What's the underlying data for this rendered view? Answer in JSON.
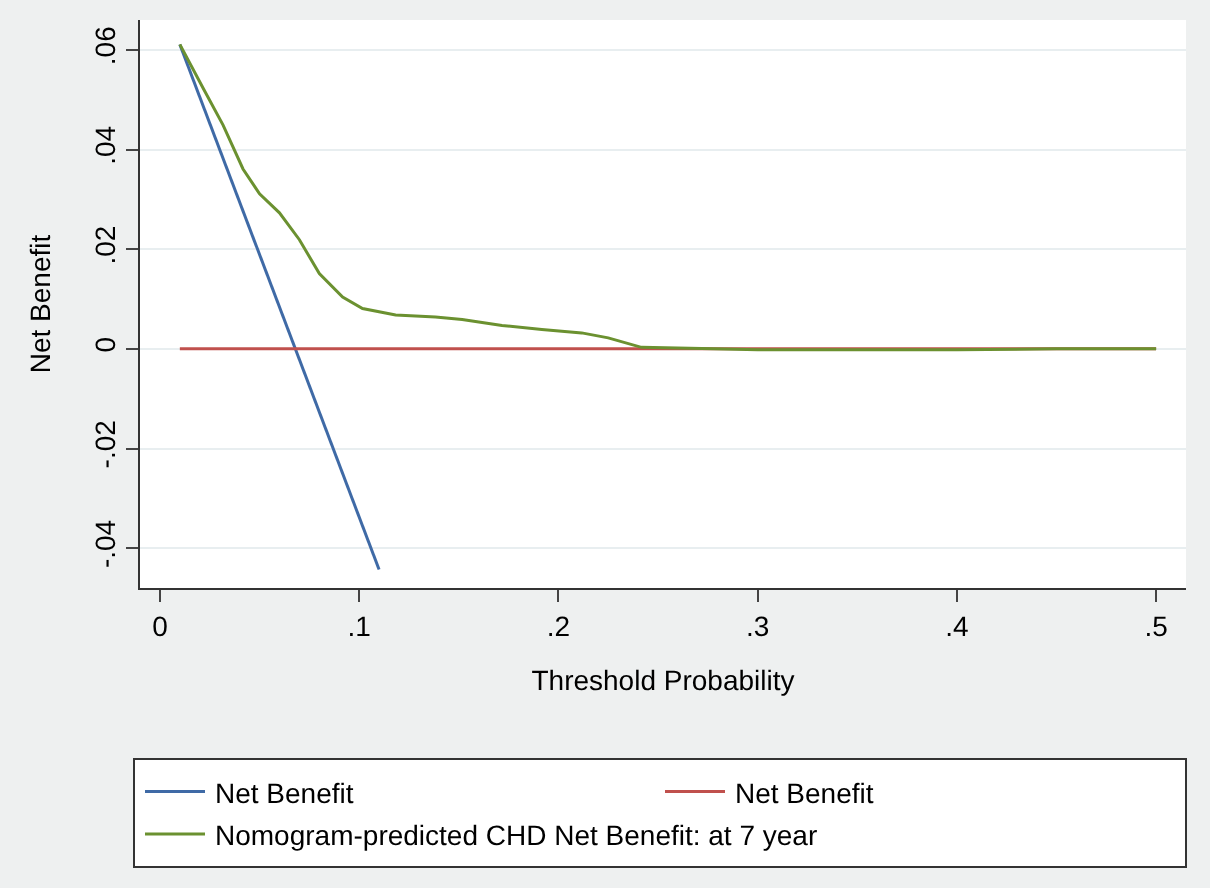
{
  "chart_data": {
    "type": "line",
    "xlabel": "Threshold Probability",
    "ylabel": "Net Benefit",
    "xlim": [
      -0.01,
      0.515
    ],
    "ylim": [
      -0.048,
      0.066
    ],
    "xticks": [
      0,
      {
        "value": 0.1,
        "label": ".1"
      },
      {
        "value": 0.2,
        "label": ".2"
      },
      {
        "value": 0.3,
        "label": ".3"
      },
      {
        "value": 0.4,
        "label": ".4"
      },
      {
        "value": 0.5,
        "label": ".5"
      }
    ],
    "yticks": [
      {
        "value": -0.04,
        "label": "-.04"
      },
      {
        "value": -0.02,
        "label": "-.02"
      },
      0,
      {
        "value": 0.02,
        "label": ".02"
      },
      {
        "value": 0.04,
        "label": ".04"
      },
      {
        "value": 0.06,
        "label": ".06"
      }
    ],
    "grid": "y",
    "legend": "bottom",
    "marker": "none",
    "line_style": "solid",
    "series": [
      {
        "name": "Net Benefit",
        "color": "#3f6aa6",
        "x": [
          0.01,
          0.11
        ],
        "values": [
          0.0611,
          -0.0443
        ]
      },
      {
        "name": "Net Benefit",
        "color": "#c0504d",
        "x": [
          0.01,
          0.5
        ],
        "values": [
          0,
          0
        ]
      },
      {
        "name": "Nomogram-predicted CHD Net Benefit: at 7 year",
        "color": "#6b9130",
        "x": [
          0.01,
          0.0217,
          0.0317,
          0.0417,
          0.05,
          0.06,
          0.07,
          0.08,
          0.0917,
          0.1017,
          0.1183,
          0.1383,
          0.1517,
          0.1717,
          0.1917,
          0.2117,
          0.225,
          0.2417,
          0.278,
          0.3,
          0.35,
          0.4,
          0.45,
          0.5
        ],
        "values": [
          0.0611,
          0.0523,
          0.0449,
          0.0361,
          0.0311,
          0.0273,
          0.0219,
          0.0151,
          0.0104,
          0.0081,
          0.0068,
          0.0064,
          0.0059,
          0.0047,
          0.0039,
          0.0032,
          0.0022,
          0.0003,
          0,
          -0.0002,
          -0.0002,
          -0.0002,
          0,
          0
        ]
      }
    ]
  }
}
